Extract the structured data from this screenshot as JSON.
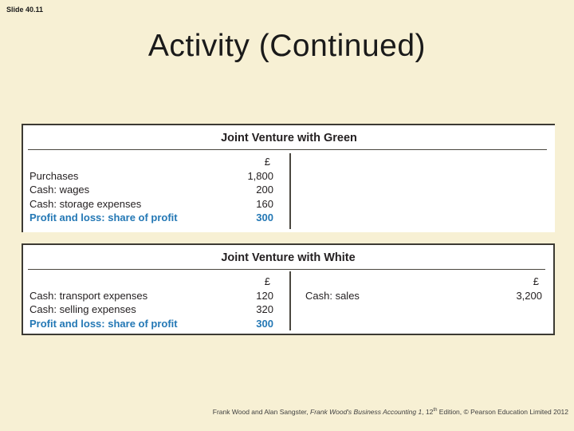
{
  "slide_label": "Slide 40.11",
  "title": "Activity (Continued)",
  "colors": {
    "background": "#f7f0d4",
    "table_border": "#3c3a33",
    "profit_blue": "#2478b5",
    "text": "#231f20"
  },
  "tables": {
    "green": {
      "title": "Joint Venture with Green",
      "currency_symbol": "£",
      "rows": [
        {
          "label": "Purchases",
          "value": "1,800"
        },
        {
          "label": "Cash: wages",
          "value": "200"
        },
        {
          "label": "Cash: storage expenses",
          "value": "160"
        },
        {
          "label": "Profit and loss: share of profit",
          "value": "300"
        }
      ]
    },
    "white": {
      "title": "Joint Venture with White",
      "left_currency_symbol": "£",
      "right_currency_symbol": "£",
      "left_rows": [
        {
          "label": "Cash: transport expenses",
          "value": "120"
        },
        {
          "label": "Cash: selling expenses",
          "value": "320"
        },
        {
          "label": "Profit and loss: share of profit",
          "value": "300"
        }
      ],
      "right_rows": [
        {
          "label": "Cash: sales",
          "value": "3,200"
        }
      ]
    }
  },
  "footer": {
    "authors": "Frank Wood and Alan Sangster, ",
    "book_title": "Frank Wood's Business Accounting 1",
    "edition_prefix": ", 12",
    "edition_sup": "th",
    "edition_suffix": " Edition, © Pearson Education Limited 2012"
  }
}
